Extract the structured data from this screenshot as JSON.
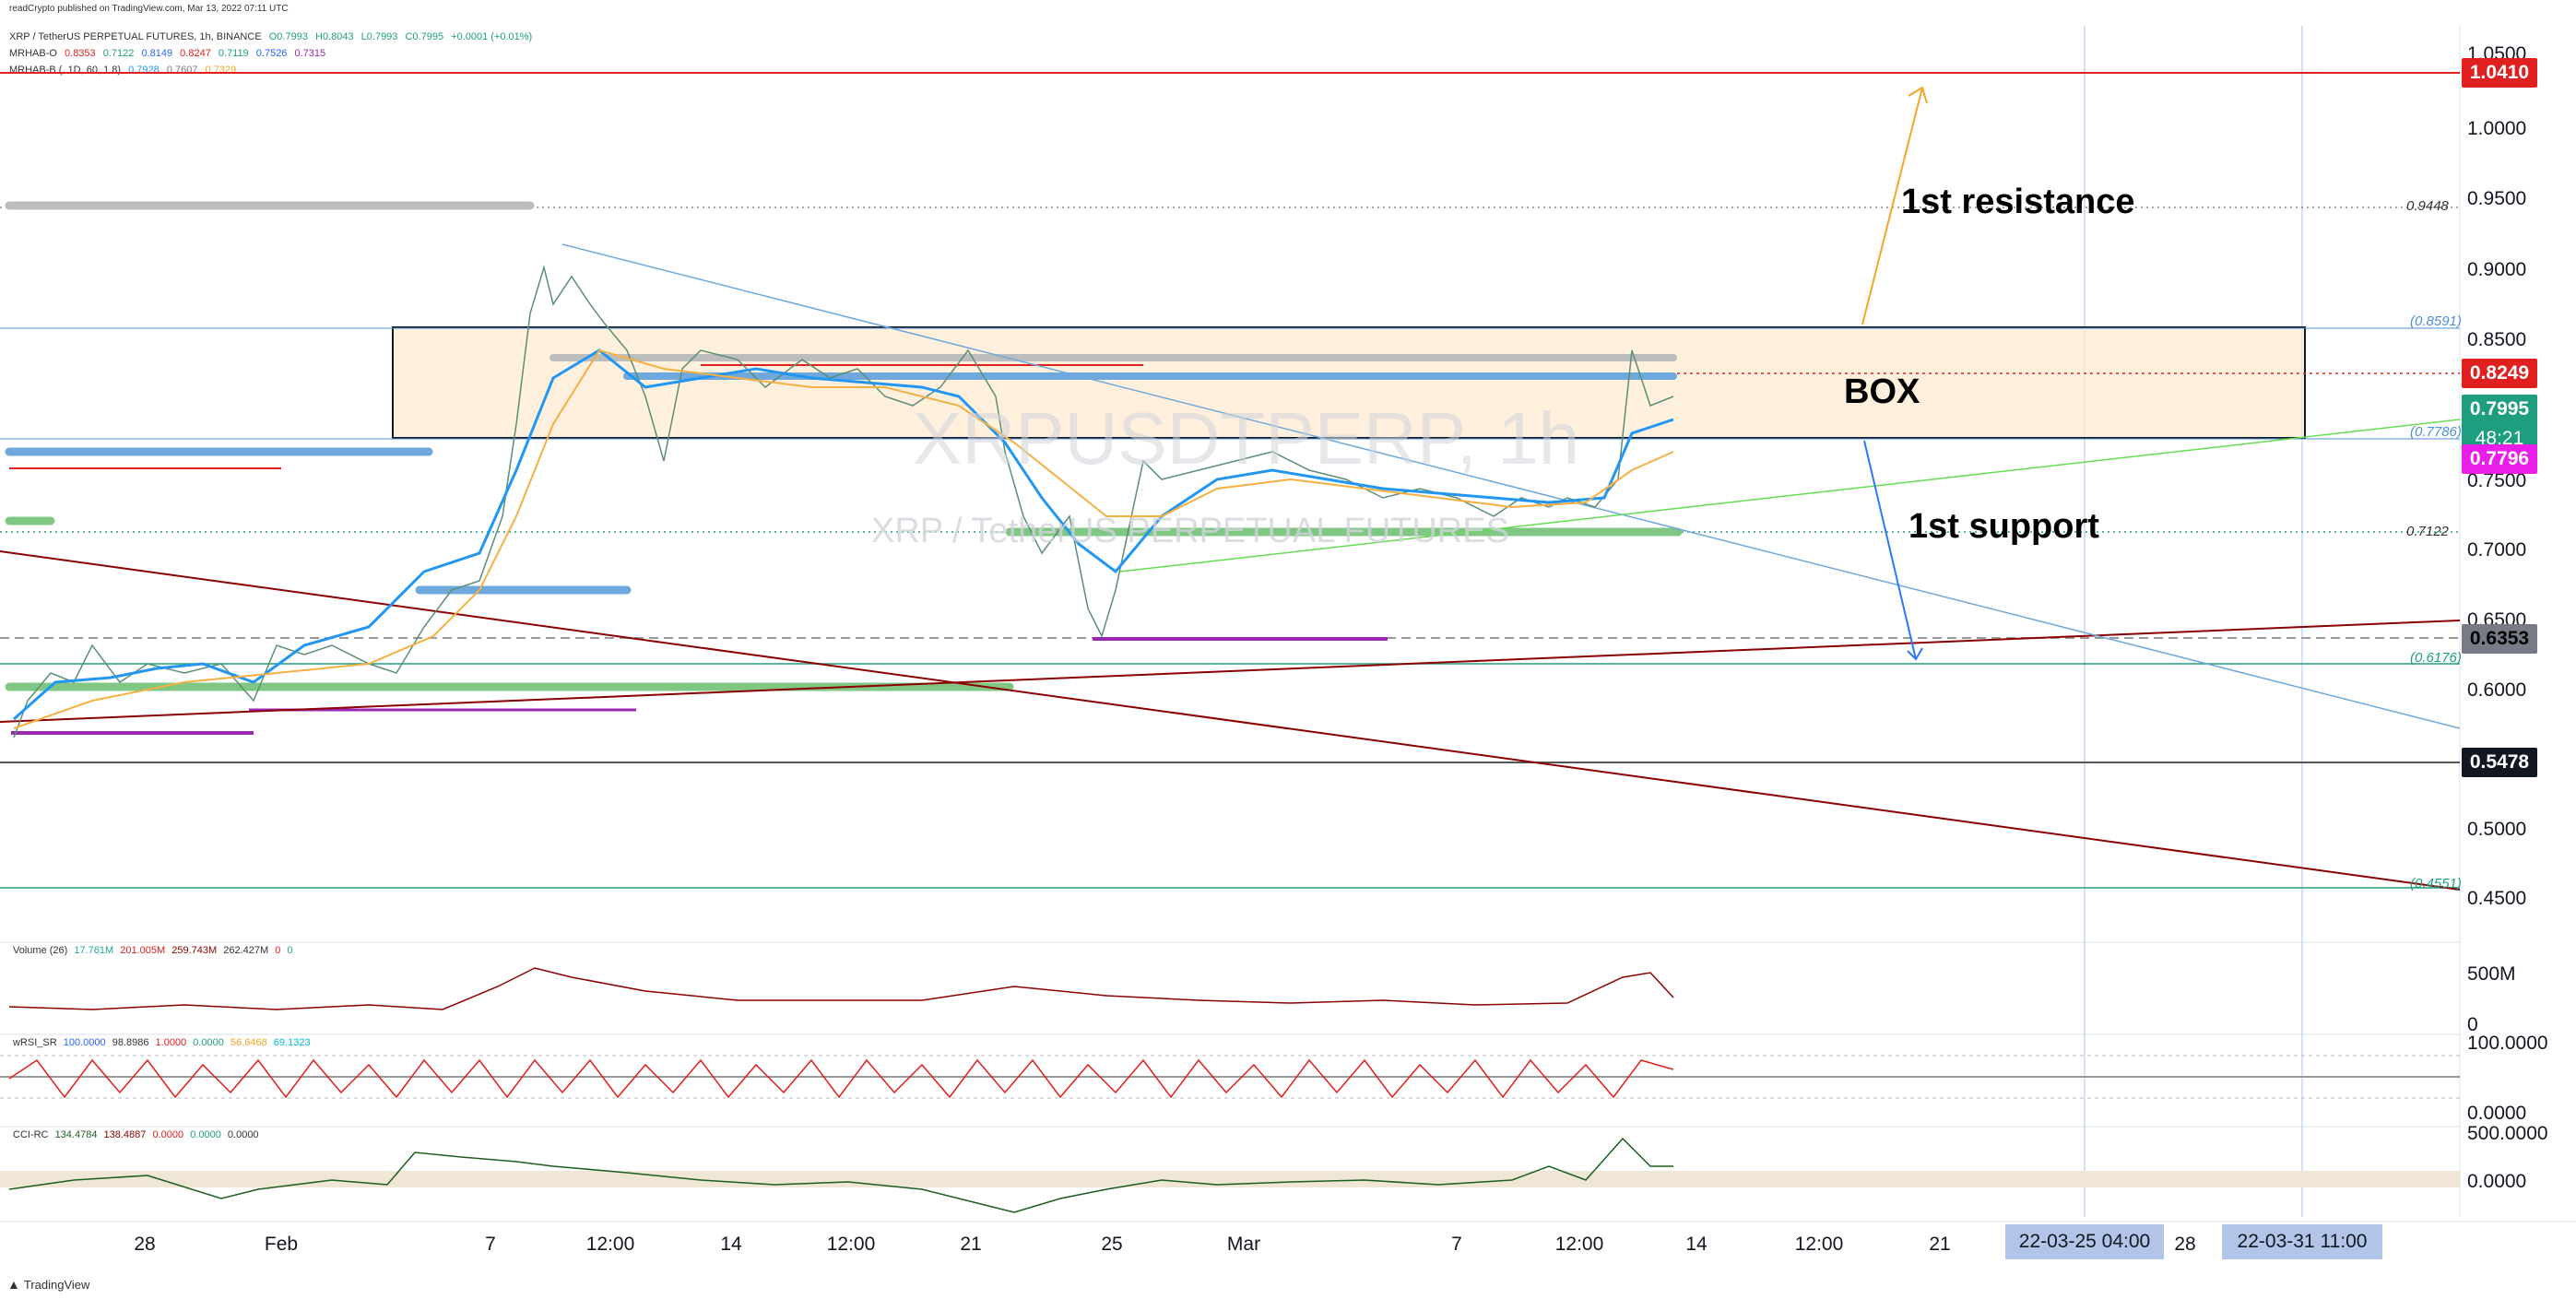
{
  "header": {
    "published": "readCrypto published on TradingView.com, Mar 13, 2022 07:11 UTC",
    "symbol_line": {
      "name": "XRP / TetherUS PERPETUAL FUTURES, 1h, BINANCE",
      "o": "O0.7993",
      "h": "H0.8043",
      "l": "L0.7993",
      "c": "C0.7995",
      "chg": "+0.0001 (+0.01%)"
    },
    "ind1": {
      "name": "MRHAB-O",
      "values": [
        "0.8353",
        "0.7122",
        "0.8149",
        "0.8247",
        "0.7119",
        "0.7526",
        "0.7315"
      ]
    },
    "ind2": {
      "name": "MRHAB-B (, 1D, 60, 1.8)",
      "values": [
        "0.7928",
        "0.7607",
        "0.7329"
      ]
    }
  },
  "watermark": {
    "symbol": "XRPUSDTPERP, 1h",
    "desc": "XRP / TetherUS PERPETUAL FUTURES"
  },
  "price_axis": {
    "labels": [
      "1.0500",
      "1.0000",
      "0.9500",
      "0.9000",
      "0.8500",
      "0.7500",
      "0.7000",
      "0.6500",
      "0.6000",
      "0.5000",
      "0.4500"
    ],
    "tags": [
      {
        "value": "1.0410",
        "color": "#e0201f"
      },
      {
        "value": "0.8249",
        "color": "#e0201f"
      },
      {
        "value": "0.7995",
        "color": "#1e9e7e"
      },
      {
        "value": "48:21",
        "color": "#1e9e7e"
      },
      {
        "value": "0.7796",
        "color": "#e91ee8"
      },
      {
        "value": "0.6353",
        "color": "#787b86"
      },
      {
        "value": "0.5478",
        "color": "#131722"
      }
    ]
  },
  "fib_labels": {
    "a": "0.9448",
    "b": "(0.8591)",
    "c": "(0.7786)",
    "d": "0.7122",
    "e": "(0.6176)",
    "f": "(0.4551)"
  },
  "annotations": {
    "resistance": "1st resistance",
    "box": "BOX",
    "support": "1st support"
  },
  "time_axis": {
    "labels": [
      "28",
      "Feb",
      "7",
      "12:00",
      "14",
      "12:00",
      "21",
      "25",
      "Mar",
      "7",
      "12:00",
      "14",
      "12:00",
      "21",
      "28"
    ],
    "tags": [
      "22-03-25   04:00",
      "22-03-31   11:00"
    ]
  },
  "panes": {
    "volume": {
      "name": "Volume (26)",
      "values": [
        "17.761M",
        "201.005M",
        "259.743M",
        "262.427M",
        "0",
        "0"
      ],
      "axis": [
        "500M",
        "0"
      ]
    },
    "rsi": {
      "name": "wRSI_SR",
      "values": [
        "100.0000",
        "98.8986",
        "1.0000",
        "0.0000",
        "56.6468",
        "69.1323"
      ],
      "axis": [
        "100.0000",
        "0.0000"
      ]
    },
    "cci": {
      "name": "CCI-RC",
      "values": [
        "134.4784",
        "138.4887",
        "0.0000",
        "0.0000",
        "0.0000"
      ],
      "axis": [
        "500.0000",
        "0.0000"
      ]
    }
  },
  "footer": {
    "brand": "TradingView"
  },
  "colors": {
    "accent_red": "#e0201f",
    "accent_green": "#1e9e7e",
    "fill_box": "#fde9cf",
    "line_blue": "#2962ff"
  }
}
